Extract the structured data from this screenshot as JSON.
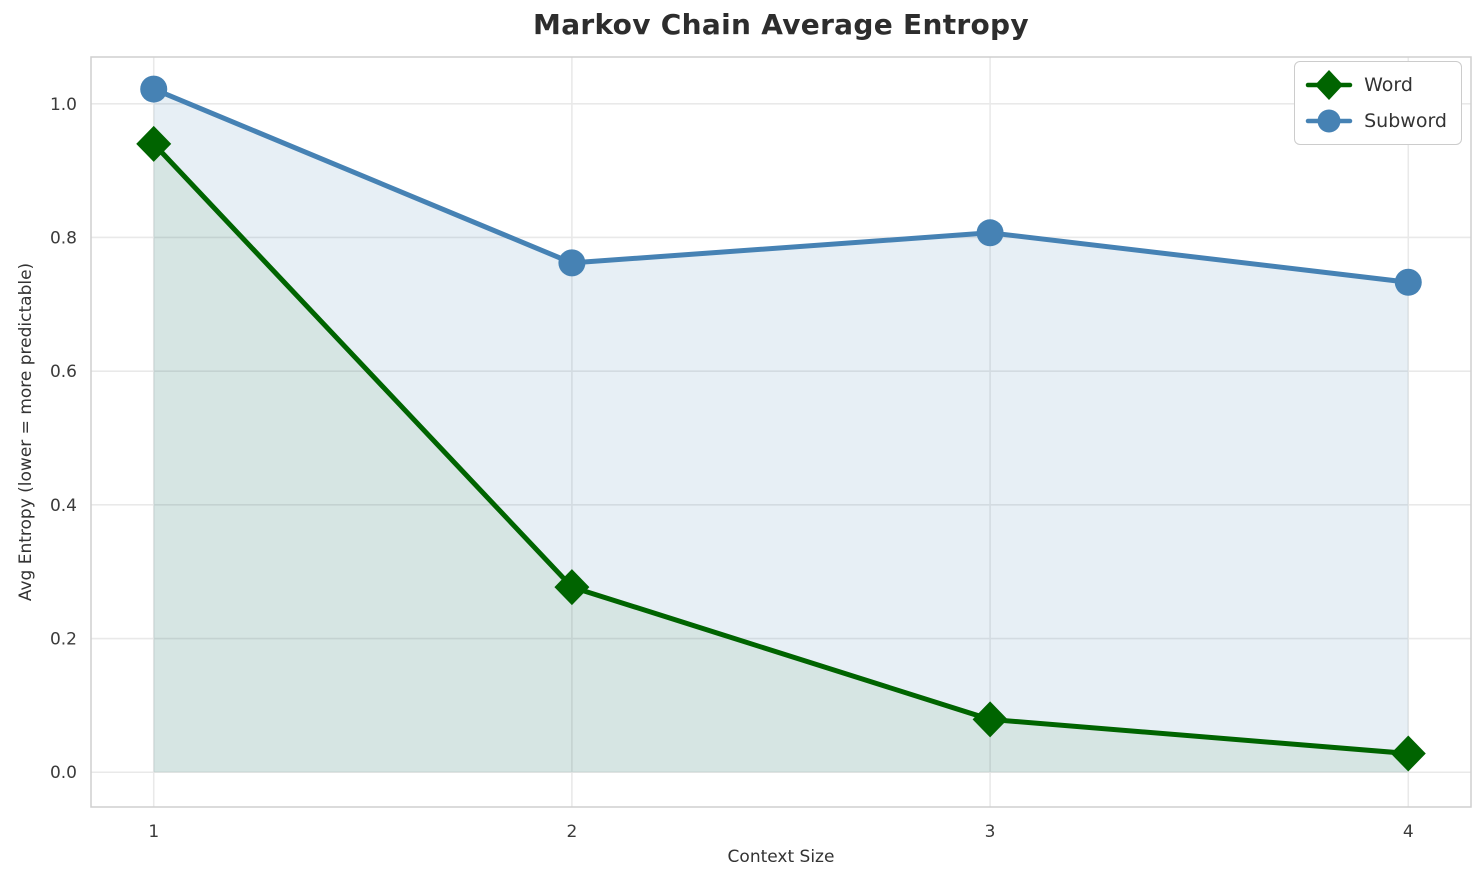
{
  "figure": {
    "title": "Markov Chain Average Entropy",
    "xlabel": "Context Size",
    "ylabel": "Avg Entropy (lower = more predictable)"
  },
  "legend": {
    "position": "upper right",
    "items": [
      {
        "label": "Word",
        "marker": "diamond",
        "color": "#006400"
      },
      {
        "label": "Subword",
        "marker": "circle",
        "color": "#4682B4"
      }
    ]
  },
  "chart_data": {
    "type": "line",
    "title": "Markov Chain Average Entropy",
    "xlabel": "Context Size",
    "ylabel": "Avg Entropy (lower = more predictable)",
    "x": [
      1,
      2,
      3,
      4
    ],
    "series": [
      {
        "name": "Word",
        "color": "#006400",
        "marker": "diamond",
        "values": [
          0.94,
          0.277,
          0.079,
          0.028
        ],
        "area_fill": true,
        "fill_opacity": 0.07
      },
      {
        "name": "Subword",
        "color": "#4682B4",
        "marker": "circle",
        "values": [
          1.022,
          0.762,
          0.807,
          0.733
        ],
        "area_fill": true,
        "fill_opacity": 0.13
      }
    ],
    "xtick_labels": [
      "1",
      "2",
      "3",
      "4"
    ],
    "xtick_values": [
      1,
      2,
      3,
      4
    ],
    "ytick_labels": [
      "0.0",
      "0.2",
      "0.4",
      "0.6",
      "0.8",
      "1.0"
    ],
    "ytick_values": [
      0.0,
      0.2,
      0.4,
      0.6,
      0.8,
      1.0
    ],
    "xlim": [
      0.85,
      4.15
    ],
    "ylim": [
      -0.052,
      1.07
    ],
    "grid": true,
    "grid_color": "#e9e9e9",
    "spine_color": "#cfcfcf",
    "tick_text_color": "#3b3b3b",
    "legend_position": "upper right"
  }
}
